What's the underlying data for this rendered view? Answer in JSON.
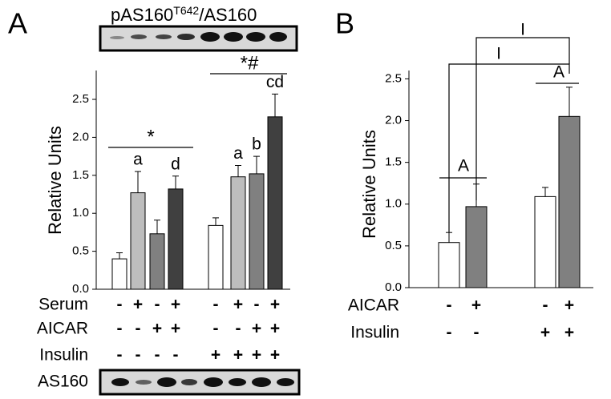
{
  "chart_data": [
    {
      "type": "bar",
      "panel_label": "A",
      "ylabel": "Relative Units",
      "blot_title": {
        "main": "pAS160",
        "sup": "T642",
        "rest": "/AS160"
      },
      "blot_label": "AS160",
      "values": [
        0.4,
        1.27,
        0.73,
        1.32,
        0.84,
        1.48,
        1.52,
        2.27
      ],
      "errors": [
        0.08,
        0.28,
        0.18,
        0.17,
        0.1,
        0.15,
        0.23,
        0.3
      ],
      "colors": [
        "#ffffff",
        "#bdbdbd",
        "#808080",
        "#404040",
        "#ffffff",
        "#bdbdbd",
        "#808080",
        "#404040"
      ],
      "bar_labels": [
        null,
        "a",
        null,
        "d",
        null,
        "a",
        "b",
        "cd"
      ],
      "group_labels": [
        "*",
        "*#"
      ],
      "treatments": [
        {
          "name": "Serum",
          "signs": [
            "-",
            "+",
            "-",
            "+",
            "-",
            "+",
            "-",
            "+"
          ]
        },
        {
          "name": "AICAR",
          "signs": [
            "-",
            "-",
            "+",
            "+",
            "-",
            "-",
            "+",
            "+"
          ]
        },
        {
          "name": "Insulin",
          "signs": [
            "-",
            "-",
            "-",
            "-",
            "+",
            "+",
            "+",
            "+"
          ]
        }
      ],
      "ylim": [
        0,
        2.88
      ],
      "yticks": [
        {
          "value": 0,
          "label": "0.0"
        },
        0.5,
        {
          "value": 1,
          "label": "1.0"
        },
        1.5,
        {
          "value": 2,
          "label": "2.0"
        },
        2.5
      ]
    },
    {
      "type": "bar",
      "panel_label": "B",
      "ylabel": "Relative Units",
      "values": [
        0.54,
        0.97,
        1.09,
        2.05
      ],
      "errors": [
        0.12,
        0.27,
        0.11,
        0.35
      ],
      "colors": [
        "#ffffff",
        "#808080",
        "#ffffff",
        "#808080"
      ],
      "annotations": [
        "A",
        "A",
        "I",
        "I"
      ],
      "treatments": [
        {
          "name": "AICAR",
          "signs": [
            "-",
            "+",
            "-",
            "+"
          ]
        },
        {
          "name": "Insulin",
          "signs": [
            "-",
            "-",
            "+",
            "+"
          ]
        }
      ],
      "ylim": [
        0,
        2.6
      ],
      "yticks": [
        {
          "value": 0,
          "label": "0.0"
        },
        0.5,
        {
          "value": 1,
          "label": "1.0"
        },
        1.5,
        {
          "value": 2,
          "label": "2.0"
        },
        2.5
      ]
    }
  ]
}
